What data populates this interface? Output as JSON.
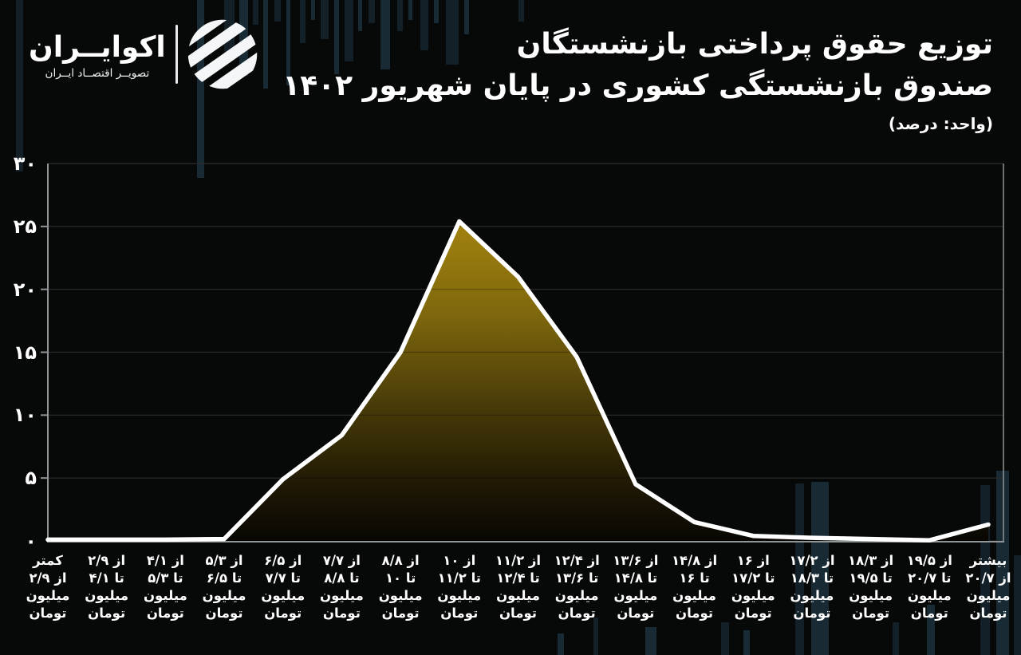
{
  "logo": {
    "brand": "اکوایــران",
    "tagline": "تصویــر اقتصــاد ایــران"
  },
  "header": {
    "title_line1": "توزیع حقوق پرداختی بازنشستگان",
    "title_line2": "صندوق بازنشستگی کشوری در پایان شهریور ۱۴۰۲",
    "subtitle": "(واحد: درصد)"
  },
  "chart_data": {
    "type": "area",
    "title": "توزیع حقوق پرداختی بازنشستگان صندوق بازنشستگی کشوری در پایان شهریور ۱۴۰۲",
    "unit_label": "(واحد: درصد)",
    "xlabel": "",
    "ylabel": "درصد",
    "ylim": [
      0,
      30
    ],
    "grid": true,
    "legend": false,
    "y_ticks_values": [
      0,
      5,
      10,
      15,
      20,
      25,
      30
    ],
    "y_ticks_labels": [
      "۰",
      "۵",
      "۱۰",
      "۱۵",
      "۲۰",
      "۲۵",
      "۳۰"
    ],
    "categories": [
      "کمتر از ۲/۹ میلیون تومان",
      "از ۲/۹ تا ۴/۱ میلیون تومان",
      "از ۴/۱ تا ۵/۳ میلیون تومان",
      "از ۵/۳ تا ۶/۵ میلیون تومان",
      "از ۶/۵ تا ۷/۷ میلیون تومان",
      "از ۷/۷ تا ۸/۸ میلیون تومان",
      "از ۸/۸ تا ۱۰ میلیون تومان",
      "از ۱۰ تا ۱۱/۲ میلیون تومان",
      "از ۱۱/۲ تا ۱۲/۴ میلیون تومان",
      "از ۱۲/۴ تا ۱۳/۶ میلیون تومان",
      "از ۱۳/۶ تا ۱۴/۸ میلیون تومان",
      "از ۱۴/۸ تا ۱۶ میلیون تومان",
      "از ۱۶ تا ۱۷/۲ میلیون تومان",
      "از ۱۷/۲ تا ۱۸/۳ میلیون تومان",
      "از ۱۸/۳ تا ۱۹/۵ میلیون تومان",
      "از ۱۹/۵ تا ۲۰/۷ میلیون تومان",
      "بیشتر از ۲۰/۷ میلیون تومان"
    ],
    "category_lines": [
      [
        "کمتر",
        "از ۲/۹",
        "میلیون",
        "تومان"
      ],
      [
        "از ۲/۹",
        "تا ۴/۱",
        "میلیون",
        "تومان"
      ],
      [
        "از ۴/۱",
        "تا ۵/۳",
        "میلیون",
        "تومان"
      ],
      [
        "از ۵/۳",
        "تا ۶/۵",
        "میلیون",
        "تومان"
      ],
      [
        "از ۶/۵",
        "تا ۷/۷",
        "میلیون",
        "تومان"
      ],
      [
        "از ۷/۷",
        "تا ۸/۸",
        "میلیون",
        "تومان"
      ],
      [
        "از ۸/۸",
        "تا ۱۰",
        "میلیون",
        "تومان"
      ],
      [
        "از ۱۰",
        "تا ۱۱/۲",
        "میلیون",
        "تومان"
      ],
      [
        "از ۱۱/۲",
        "تا ۱۲/۴",
        "میلیون",
        "تومان"
      ],
      [
        "از ۱۲/۴",
        "تا ۱۳/۶",
        "میلیون",
        "تومان"
      ],
      [
        "از ۱۳/۶",
        "تا ۱۴/۸",
        "میلیون",
        "تومان"
      ],
      [
        "از ۱۴/۸",
        "تا ۱۶",
        "میلیون",
        "تومان"
      ],
      [
        "از ۱۶",
        "تا ۱۷/۲",
        "میلیون",
        "تومان"
      ],
      [
        "از ۱۷/۲",
        "تا ۱۸/۳",
        "میلیون",
        "تومان"
      ],
      [
        "از ۱۸/۳",
        "تا ۱۹/۵",
        "میلیون",
        "تومان"
      ],
      [
        "از ۱۹/۵",
        "تا ۲۰/۷",
        "میلیون",
        "تومان"
      ],
      [
        "بیشتر",
        "از ۲۰/۷",
        "میلیون",
        "تومان"
      ]
    ],
    "values": [
      0.1,
      0.1,
      0.1,
      0.15,
      4.9,
      8.4,
      15.0,
      25.4,
      21.0,
      14.6,
      4.5,
      1.5,
      0.4,
      0.25,
      0.15,
      0.05,
      1.3
    ],
    "colors": {
      "line": "#ffffff",
      "area_top": "#a6850e",
      "area_bottom": "#090703",
      "grid": "#3c3c3c",
      "axis": "#8f9496",
      "background": "#070808",
      "pattern_bar_dark": "#15232c",
      "pattern_bar_light": "#1b2f3a"
    }
  }
}
